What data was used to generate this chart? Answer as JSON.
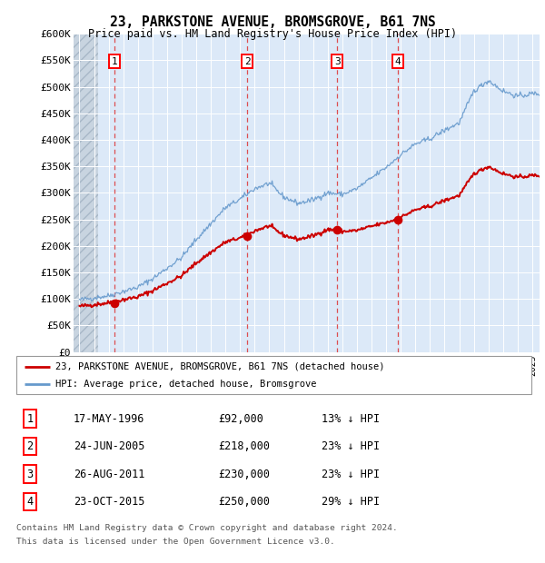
{
  "title": "23, PARKSTONE AVENUE, BROMSGROVE, B61 7NS",
  "subtitle": "Price paid vs. HM Land Registry's House Price Index (HPI)",
  "ylabel_ticks": [
    "£0",
    "£50K",
    "£100K",
    "£150K",
    "£200K",
    "£250K",
    "£300K",
    "£350K",
    "£400K",
    "£450K",
    "£500K",
    "£550K",
    "£600K"
  ],
  "ytick_values": [
    0,
    50000,
    100000,
    150000,
    200000,
    250000,
    300000,
    350000,
    400000,
    450000,
    500000,
    550000,
    600000
  ],
  "xlim_start": 1993.6,
  "xlim_end": 2025.5,
  "ylim_min": 0,
  "ylim_max": 600000,
  "bg_color": "#dce9f8",
  "grid_color": "#ffffff",
  "purchases": [
    {
      "year": 1996.38,
      "price": 92000,
      "label": "1"
    },
    {
      "year": 2005.48,
      "price": 218000,
      "label": "2"
    },
    {
      "year": 2011.65,
      "price": 230000,
      "label": "3"
    },
    {
      "year": 2015.81,
      "price": 250000,
      "label": "4"
    }
  ],
  "legend_line1": "23, PARKSTONE AVENUE, BROMSGROVE, B61 7NS (detached house)",
  "legend_line2": "HPI: Average price, detached house, Bromsgrove",
  "table": [
    {
      "num": "1",
      "date": "17-MAY-1996",
      "price": "£92,000",
      "hpi": "13% ↓ HPI"
    },
    {
      "num": "2",
      "date": "24-JUN-2005",
      "price": "£218,000",
      "hpi": "23% ↓ HPI"
    },
    {
      "num": "3",
      "date": "26-AUG-2011",
      "price": "£230,000",
      "hpi": "23% ↓ HPI"
    },
    {
      "num": "4",
      "date": "23-OCT-2015",
      "price": "£250,000",
      "hpi": "29% ↓ HPI"
    }
  ],
  "footnote1": "Contains HM Land Registry data © Crown copyright and database right 2024.",
  "footnote2": "This data is licensed under the Open Government Licence v3.0.",
  "red_line_color": "#cc0000",
  "blue_line_color": "#6699cc",
  "purchase_dot_color": "#cc0000",
  "vline_color": "#dd3333"
}
